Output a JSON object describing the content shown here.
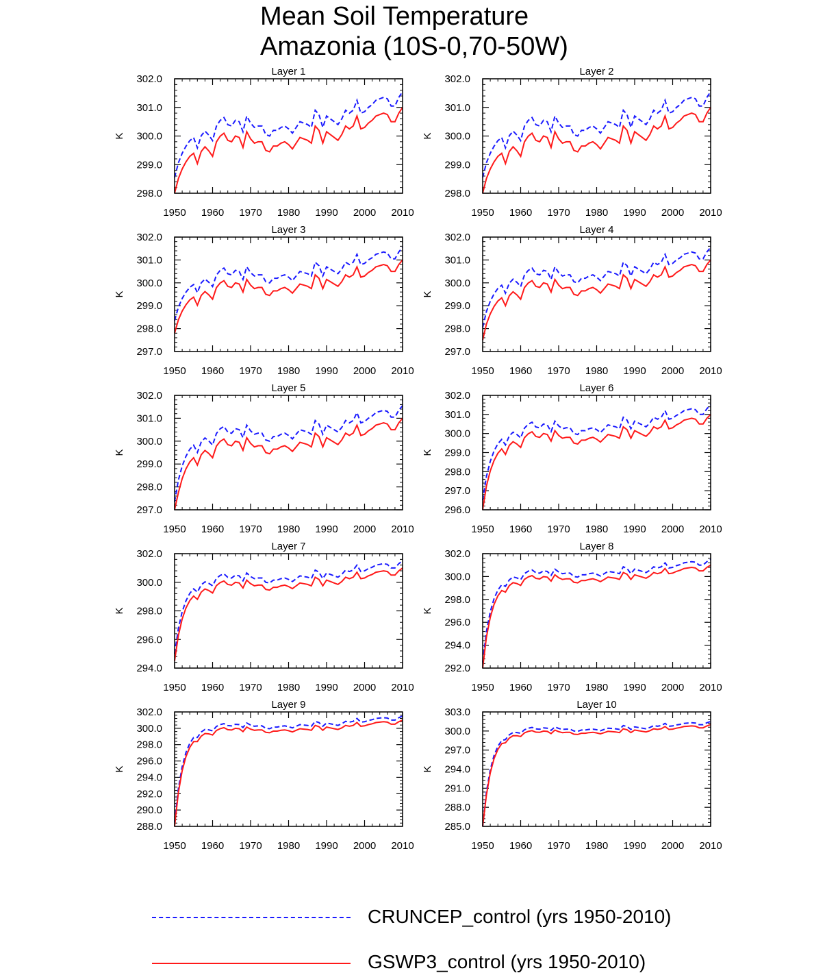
{
  "title": "Mean Soil Temperature",
  "subtitle": "Amazonia (10S-0,70-50W)",
  "legend": {
    "series1": "CRUNCEP_control (yrs 1950-2010)",
    "series2": "GSWP3_control (yrs 1950-2010)"
  },
  "colors": {
    "cruncep": "#1a1aff",
    "gswp3": "#ff1a1a"
  },
  "chart_data": [
    {
      "type": "line",
      "title": "Layer 1",
      "ylabel": "K",
      "xlim": [
        1950,
        2010
      ],
      "ylim": [
        298,
        302
      ],
      "yticks": [
        "298.0",
        "299.0",
        "300.0",
        "301.0",
        "302.0"
      ],
      "xticks": [
        "1950",
        "1960",
        "1970",
        "1980",
        "1990",
        "2000",
        "2010"
      ],
      "series": [
        {
          "name": "CRUNCEP_control (yrs 1950-2010)",
          "offset": 0.55,
          "start_depression": 1.0
        },
        {
          "name": "GSWP3_control (yrs 1950-2010)",
          "offset": 0.0,
          "start_depression": 1.0
        }
      ]
    },
    {
      "type": "line",
      "title": "Layer 2",
      "ylabel": "K",
      "xlim": [
        1950,
        2010
      ],
      "ylim": [
        298,
        302
      ],
      "yticks": [
        "298.0",
        "299.0",
        "300.0",
        "301.0",
        "302.0"
      ],
      "xticks": [
        "1950",
        "1960",
        "1970",
        "1980",
        "1990",
        "2000",
        "2010"
      ],
      "series": [
        {
          "name": "CRUNCEP_control (yrs 1950-2010)",
          "offset": 0.55,
          "start_depression": 1.0
        },
        {
          "name": "GSWP3_control (yrs 1950-2010)",
          "offset": 0.0,
          "start_depression": 1.0
        }
      ]
    },
    {
      "type": "line",
      "title": "Layer 3",
      "ylabel": "K",
      "xlim": [
        1950,
        2010
      ],
      "ylim": [
        297,
        302
      ],
      "yticks": [
        "297.0",
        "298.0",
        "299.0",
        "300.0",
        "301.0",
        "302.0"
      ],
      "xticks": [
        "1950",
        "1960",
        "1970",
        "1980",
        "1990",
        "2000",
        "2010"
      ],
      "series": [
        {
          "name": "CRUNCEP_control (yrs 1950-2010)",
          "offset": 0.55,
          "start_depression": 1.2
        },
        {
          "name": "GSWP3_control (yrs 1950-2010)",
          "offset": 0.0,
          "start_depression": 1.2
        }
      ]
    },
    {
      "type": "line",
      "title": "Layer 4",
      "ylabel": "K",
      "xlim": [
        1950,
        2010
      ],
      "ylim": [
        297,
        302
      ],
      "yticks": [
        "297.0",
        "298.0",
        "299.0",
        "300.0",
        "301.0",
        "302.0"
      ],
      "xticks": [
        "1950",
        "1960",
        "1970",
        "1980",
        "1990",
        "2000",
        "2010"
      ],
      "series": [
        {
          "name": "CRUNCEP_control (yrs 1950-2010)",
          "offset": 0.55,
          "start_depression": 1.5
        },
        {
          "name": "GSWP3_control (yrs 1950-2010)",
          "offset": 0.0,
          "start_depression": 1.5
        }
      ]
    },
    {
      "type": "line",
      "title": "Layer 5",
      "ylabel": "K",
      "xlim": [
        1950,
        2010
      ],
      "ylim": [
        297,
        302
      ],
      "yticks": [
        "297.0",
        "298.0",
        "299.0",
        "300.0",
        "301.0",
        "302.0"
      ],
      "xticks": [
        "1950",
        "1960",
        "1970",
        "1980",
        "1990",
        "2000",
        "2010"
      ],
      "series": [
        {
          "name": "CRUNCEP_control (yrs 1950-2010)",
          "offset": 0.55,
          "start_depression": 2.2
        },
        {
          "name": "GSWP3_control (yrs 1950-2010)",
          "offset": 0.0,
          "start_depression": 2.2
        }
      ]
    },
    {
      "type": "line",
      "title": "Layer 6",
      "ylabel": "K",
      "xlim": [
        1950,
        2010
      ],
      "ylim": [
        296,
        302
      ],
      "yticks": [
        "296.0",
        "297.0",
        "298.0",
        "299.0",
        "300.0",
        "301.0",
        "302.0"
      ],
      "xticks": [
        "1950",
        "1960",
        "1970",
        "1980",
        "1990",
        "2000",
        "2010"
      ],
      "series": [
        {
          "name": "CRUNCEP_control (yrs 1950-2010)",
          "offset": 0.5,
          "start_depression": 3.0
        },
        {
          "name": "GSWP3_control (yrs 1950-2010)",
          "offset": 0.0,
          "start_depression": 3.0
        }
      ]
    },
    {
      "type": "line",
      "title": "Layer 7",
      "ylabel": "K",
      "xlim": [
        1950,
        2010
      ],
      "ylim": [
        294,
        302
      ],
      "yticks": [
        "294.0",
        "296.0",
        "298.0",
        "300.0",
        "302.0"
      ],
      "xticks": [
        "1950",
        "1960",
        "1970",
        "1980",
        "1990",
        "2000",
        "2010"
      ],
      "series": [
        {
          "name": "CRUNCEP_control (yrs 1950-2010)",
          "offset": 0.5,
          "start_depression": 4.5
        },
        {
          "name": "GSWP3_control (yrs 1950-2010)",
          "offset": 0.0,
          "start_depression": 4.5
        }
      ]
    },
    {
      "type": "line",
      "title": "Layer 8",
      "ylabel": "K",
      "xlim": [
        1950,
        2010
      ],
      "ylim": [
        292,
        302
      ],
      "yticks": [
        "292.0",
        "294.0",
        "296.0",
        "298.0",
        "300.0",
        "302.0"
      ],
      "xticks": [
        "1950",
        "1960",
        "1970",
        "1980",
        "1990",
        "2000",
        "2010"
      ],
      "series": [
        {
          "name": "CRUNCEP_control (yrs 1950-2010)",
          "offset": 0.5,
          "start_depression": 7.0
        },
        {
          "name": "GSWP3_control (yrs 1950-2010)",
          "offset": 0.0,
          "start_depression": 7.0
        }
      ]
    },
    {
      "type": "line",
      "title": "Layer 9",
      "ylabel": "K",
      "xlim": [
        1950,
        2010
      ],
      "ylim": [
        288,
        302
      ],
      "yticks": [
        "288.0",
        "290.0",
        "292.0",
        "294.0",
        "296.0",
        "298.0",
        "300.0",
        "302.0"
      ],
      "xticks": [
        "1950",
        "1960",
        "1970",
        "1980",
        "1990",
        "2000",
        "2010"
      ],
      "series": [
        {
          "name": "CRUNCEP_control (yrs 1950-2010)",
          "offset": 0.5,
          "start_depression": 11.0
        },
        {
          "name": "GSWP3_control (yrs 1950-2010)",
          "offset": 0.0,
          "start_depression": 11.0
        }
      ]
    },
    {
      "type": "line",
      "title": "Layer 10",
      "ylabel": "K",
      "xlim": [
        1950,
        2010
      ],
      "ylim": [
        285,
        303
      ],
      "yticks": [
        "285.0",
        "288.0",
        "291.0",
        "294.0",
        "297.0",
        "300.0",
        "303.0"
      ],
      "xticks": [
        "1950",
        "1960",
        "1970",
        "1980",
        "1990",
        "2000",
        "2010"
      ],
      "series": [
        {
          "name": "CRUNCEP_control (yrs 1950-2010)",
          "offset": 0.5,
          "start_depression": 14.5
        },
        {
          "name": "GSWP3_control (yrs 1950-2010)",
          "offset": 0.0,
          "start_depression": 14.5
        }
      ]
    }
  ],
  "gswp3_base_series": {
    "years": [
      1950,
      1951,
      1952,
      1953,
      1954,
      1955,
      1956,
      1957,
      1958,
      1959,
      1960,
      1961,
      1962,
      1963,
      1964,
      1965,
      1966,
      1967,
      1968,
      1969,
      1970,
      1971,
      1972,
      1973,
      1974,
      1975,
      1976,
      1977,
      1978,
      1979,
      1980,
      1981,
      1982,
      1983,
      1984,
      1985,
      1986,
      1987,
      1988,
      1989,
      1990,
      1991,
      1992,
      1993,
      1994,
      1995,
      1996,
      1997,
      1998,
      1999,
      2000,
      2001,
      2002,
      2003,
      2004,
      2005,
      2006,
      2007,
      2008,
      2009,
      2010
    ],
    "values": [
      299.0,
      299.15,
      299.25,
      299.35,
      299.45,
      299.5,
      299.1,
      299.5,
      299.65,
      299.5,
      299.3,
      299.8,
      300.0,
      300.1,
      299.85,
      299.8,
      300.0,
      299.95,
      299.6,
      300.15,
      299.9,
      299.75,
      299.8,
      299.8,
      299.5,
      299.45,
      299.65,
      299.65,
      299.75,
      299.8,
      299.7,
      299.55,
      299.75,
      299.95,
      299.9,
      299.85,
      299.75,
      300.35,
      300.2,
      299.75,
      300.15,
      300.05,
      299.95,
      299.85,
      300.05,
      300.35,
      300.25,
      300.35,
      300.7,
      300.25,
      300.3,
      300.45,
      300.55,
      300.7,
      300.75,
      300.8,
      300.75,
      300.5,
      300.5,
      300.8,
      301.0
    ]
  }
}
